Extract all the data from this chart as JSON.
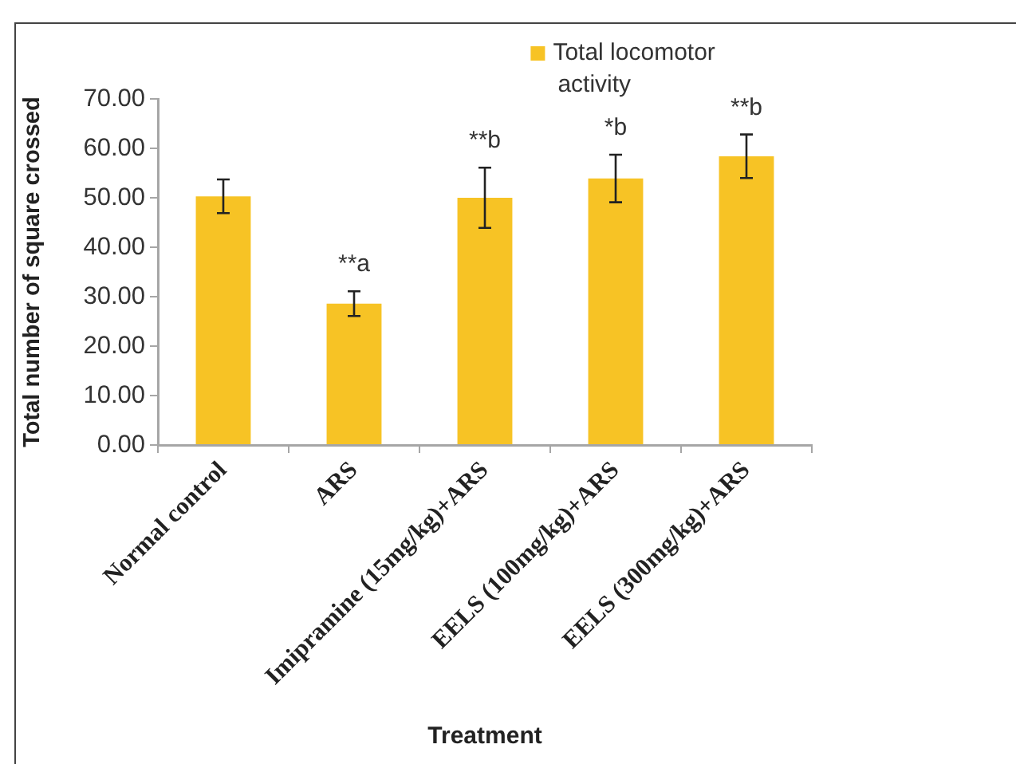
{
  "chart_data": {
    "type": "bar",
    "xlabel": "Treatment",
    "ylabel": "Total number of square crossed",
    "categories": [
      "Normal control",
      "ARS",
      "Imipramine (15mg/kg)+ARS",
      "EELS (100mg/kg)+ARS",
      "EELS (300mg/kg)+ARS"
    ],
    "series": [
      {
        "name": "Total locomotor activity",
        "color": "#f7c325",
        "values": [
          50.3,
          28.6,
          50.0,
          53.9,
          58.4
        ],
        "errors": [
          3.4,
          2.5,
          6.1,
          4.8,
          4.4
        ]
      }
    ],
    "ylim": [
      0,
      70
    ],
    "yticks": [
      {
        "value": 0,
        "label": "0.00"
      },
      {
        "value": 10,
        "label": "10.00"
      },
      {
        "value": 20,
        "label": "20.00"
      },
      {
        "value": 30,
        "label": "30.00"
      },
      {
        "value": 40,
        "label": "40.00"
      },
      {
        "value": 50,
        "label": "50.00"
      },
      {
        "value": 60,
        "label": "60.00"
      },
      {
        "value": 70,
        "label": "70.00"
      }
    ],
    "legend": "top right",
    "annotations": [
      {
        "text": "**a",
        "x": "ARS",
        "y": 28.6
      },
      {
        "text": "**b",
        "x": "Imipramine (15mg/kg)+ARS",
        "y": 50.0
      },
      {
        "text": "*b",
        "x": "EELS (100mg/kg)+ARS",
        "y": 53.9
      },
      {
        "text": "**b",
        "x": "EELS (300mg/kg)+ARS",
        "y": 58.4
      }
    ]
  }
}
